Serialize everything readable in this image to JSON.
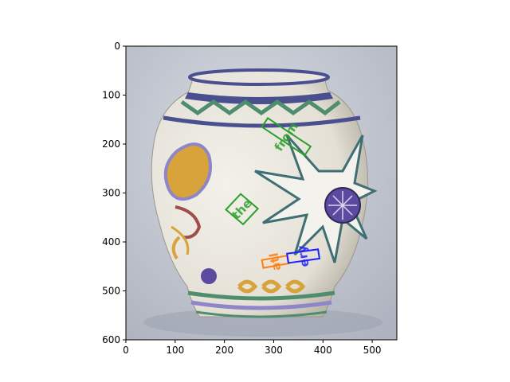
{
  "image": {
    "subject": "painted ceramic vase",
    "colors": {
      "background": "#c9cdd6",
      "vase_body": "#e9e6dd",
      "vase_shadow": "#b8b3a8",
      "rim_dark": "#4a4f8f",
      "lavender": "#8f86c9",
      "green": "#4f8d6f",
      "teal": "#3f6f74",
      "ochre": "#d8a33a",
      "red_brown": "#a04e4b",
      "purple": "#5b4aa0"
    }
  },
  "axes": {
    "xlim": [
      0,
      550
    ],
    "ylim": [
      600,
      0
    ],
    "x_ticks": [
      "0",
      "100",
      "200",
      "300",
      "400",
      "500"
    ],
    "y_ticks": [
      "0",
      "100",
      "200",
      "300",
      "400",
      "500",
      "600"
    ]
  },
  "annotations": [
    {
      "text": "from",
      "color": "#2ca02c",
      "box_corners": [
        [
          276,
          165
        ],
        [
          363,
          223
        ],
        [
          375,
          205
        ],
        [
          288,
          147
        ]
      ]
    },
    {
      "text": "the",
      "color": "#2ca02c",
      "box_corners": [
        [
          203,
          334
        ],
        [
          238,
          364
        ],
        [
          268,
          332
        ],
        [
          233,
          302
        ]
      ]
    },
    {
      "text": "atl",
      "color": "#ff7f0e",
      "box_corners": [
        [
          279,
          453
        ],
        [
          330,
          444
        ],
        [
          327,
          428
        ],
        [
          276,
          437
        ]
      ]
    },
    {
      "text": "ery",
      "color": "#1f1fff",
      "box_corners": [
        [
          330,
          443
        ],
        [
          393,
          434
        ],
        [
          390,
          415
        ],
        [
          327,
          424
        ]
      ]
    }
  ]
}
